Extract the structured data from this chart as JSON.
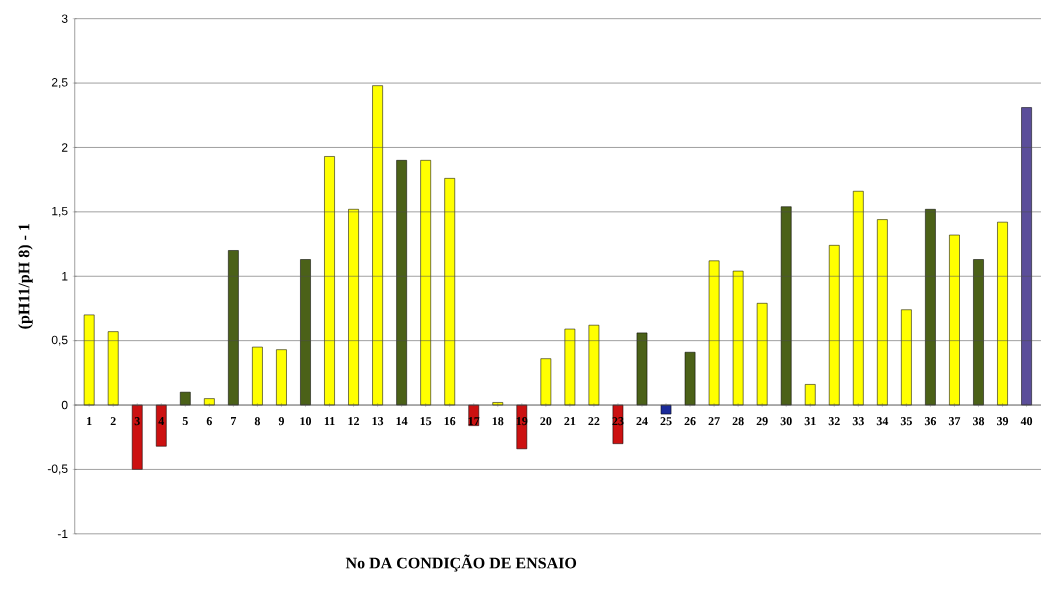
{
  "chart_data": {
    "type": "bar",
    "categories": [
      "1",
      "2",
      "3",
      "4",
      "5",
      "6",
      "7",
      "8",
      "9",
      "10",
      "11",
      "12",
      "13",
      "14",
      "15",
      "16",
      "17",
      "18",
      "19",
      "20",
      "21",
      "22",
      "23",
      "24",
      "25",
      "26",
      "27",
      "28",
      "29",
      "30",
      "31",
      "32",
      "33",
      "34",
      "35",
      "36",
      "37",
      "38",
      "39",
      "40"
    ],
    "values": [
      0.7,
      0.57,
      -0.5,
      -0.32,
      0.1,
      0.05,
      1.2,
      0.45,
      0.43,
      1.13,
      1.93,
      1.52,
      2.48,
      1.9,
      1.9,
      1.76,
      -0.16,
      0.02,
      -0.34,
      0.36,
      0.59,
      0.62,
      -0.3,
      0.56,
      -0.07,
      0.41,
      1.12,
      1.04,
      0.79,
      1.54,
      0.16,
      1.24,
      1.66,
      1.44,
      0.74,
      1.52,
      1.32,
      1.13,
      1.42,
      2.31
    ],
    "colors": [
      "#ffff00",
      "#ffff00",
      "#cc1111",
      "#cc1111",
      "#4b6118",
      "#ffff00",
      "#4b6118",
      "#ffff00",
      "#ffff00",
      "#4b6118",
      "#ffff00",
      "#ffff00",
      "#ffff00",
      "#4b6118",
      "#ffff00",
      "#ffff00",
      "#cc1111",
      "#ffff00",
      "#cc1111",
      "#ffff00",
      "#ffff00",
      "#ffff00",
      "#cc1111",
      "#4b6118",
      "#1a2a9a",
      "#4b6118",
      "#ffff00",
      "#ffff00",
      "#ffff00",
      "#4b6118",
      "#ffff00",
      "#ffff00",
      "#ffff00",
      "#ffff00",
      "#ffff00",
      "#4b6118",
      "#ffff00",
      "#4b6118",
      "#ffff00",
      "#5b4e9a"
    ],
    "xlabel": "No DA CONDIÇÃO DE ENSAIO",
    "ylabel": "(pH11/pH 8) - 1",
    "ylim": [
      -1,
      3
    ],
    "yticks": [
      {
        "value": -1,
        "label": "-1"
      },
      {
        "value": -0.5,
        "label": "-0,5"
      },
      0,
      {
        "value": 0.5,
        "label": "0,5"
      },
      1,
      {
        "value": 1.5,
        "label": "1,5"
      },
      2,
      {
        "value": 2.5,
        "label": "2,5"
      },
      3
    ],
    "grid": "y"
  }
}
